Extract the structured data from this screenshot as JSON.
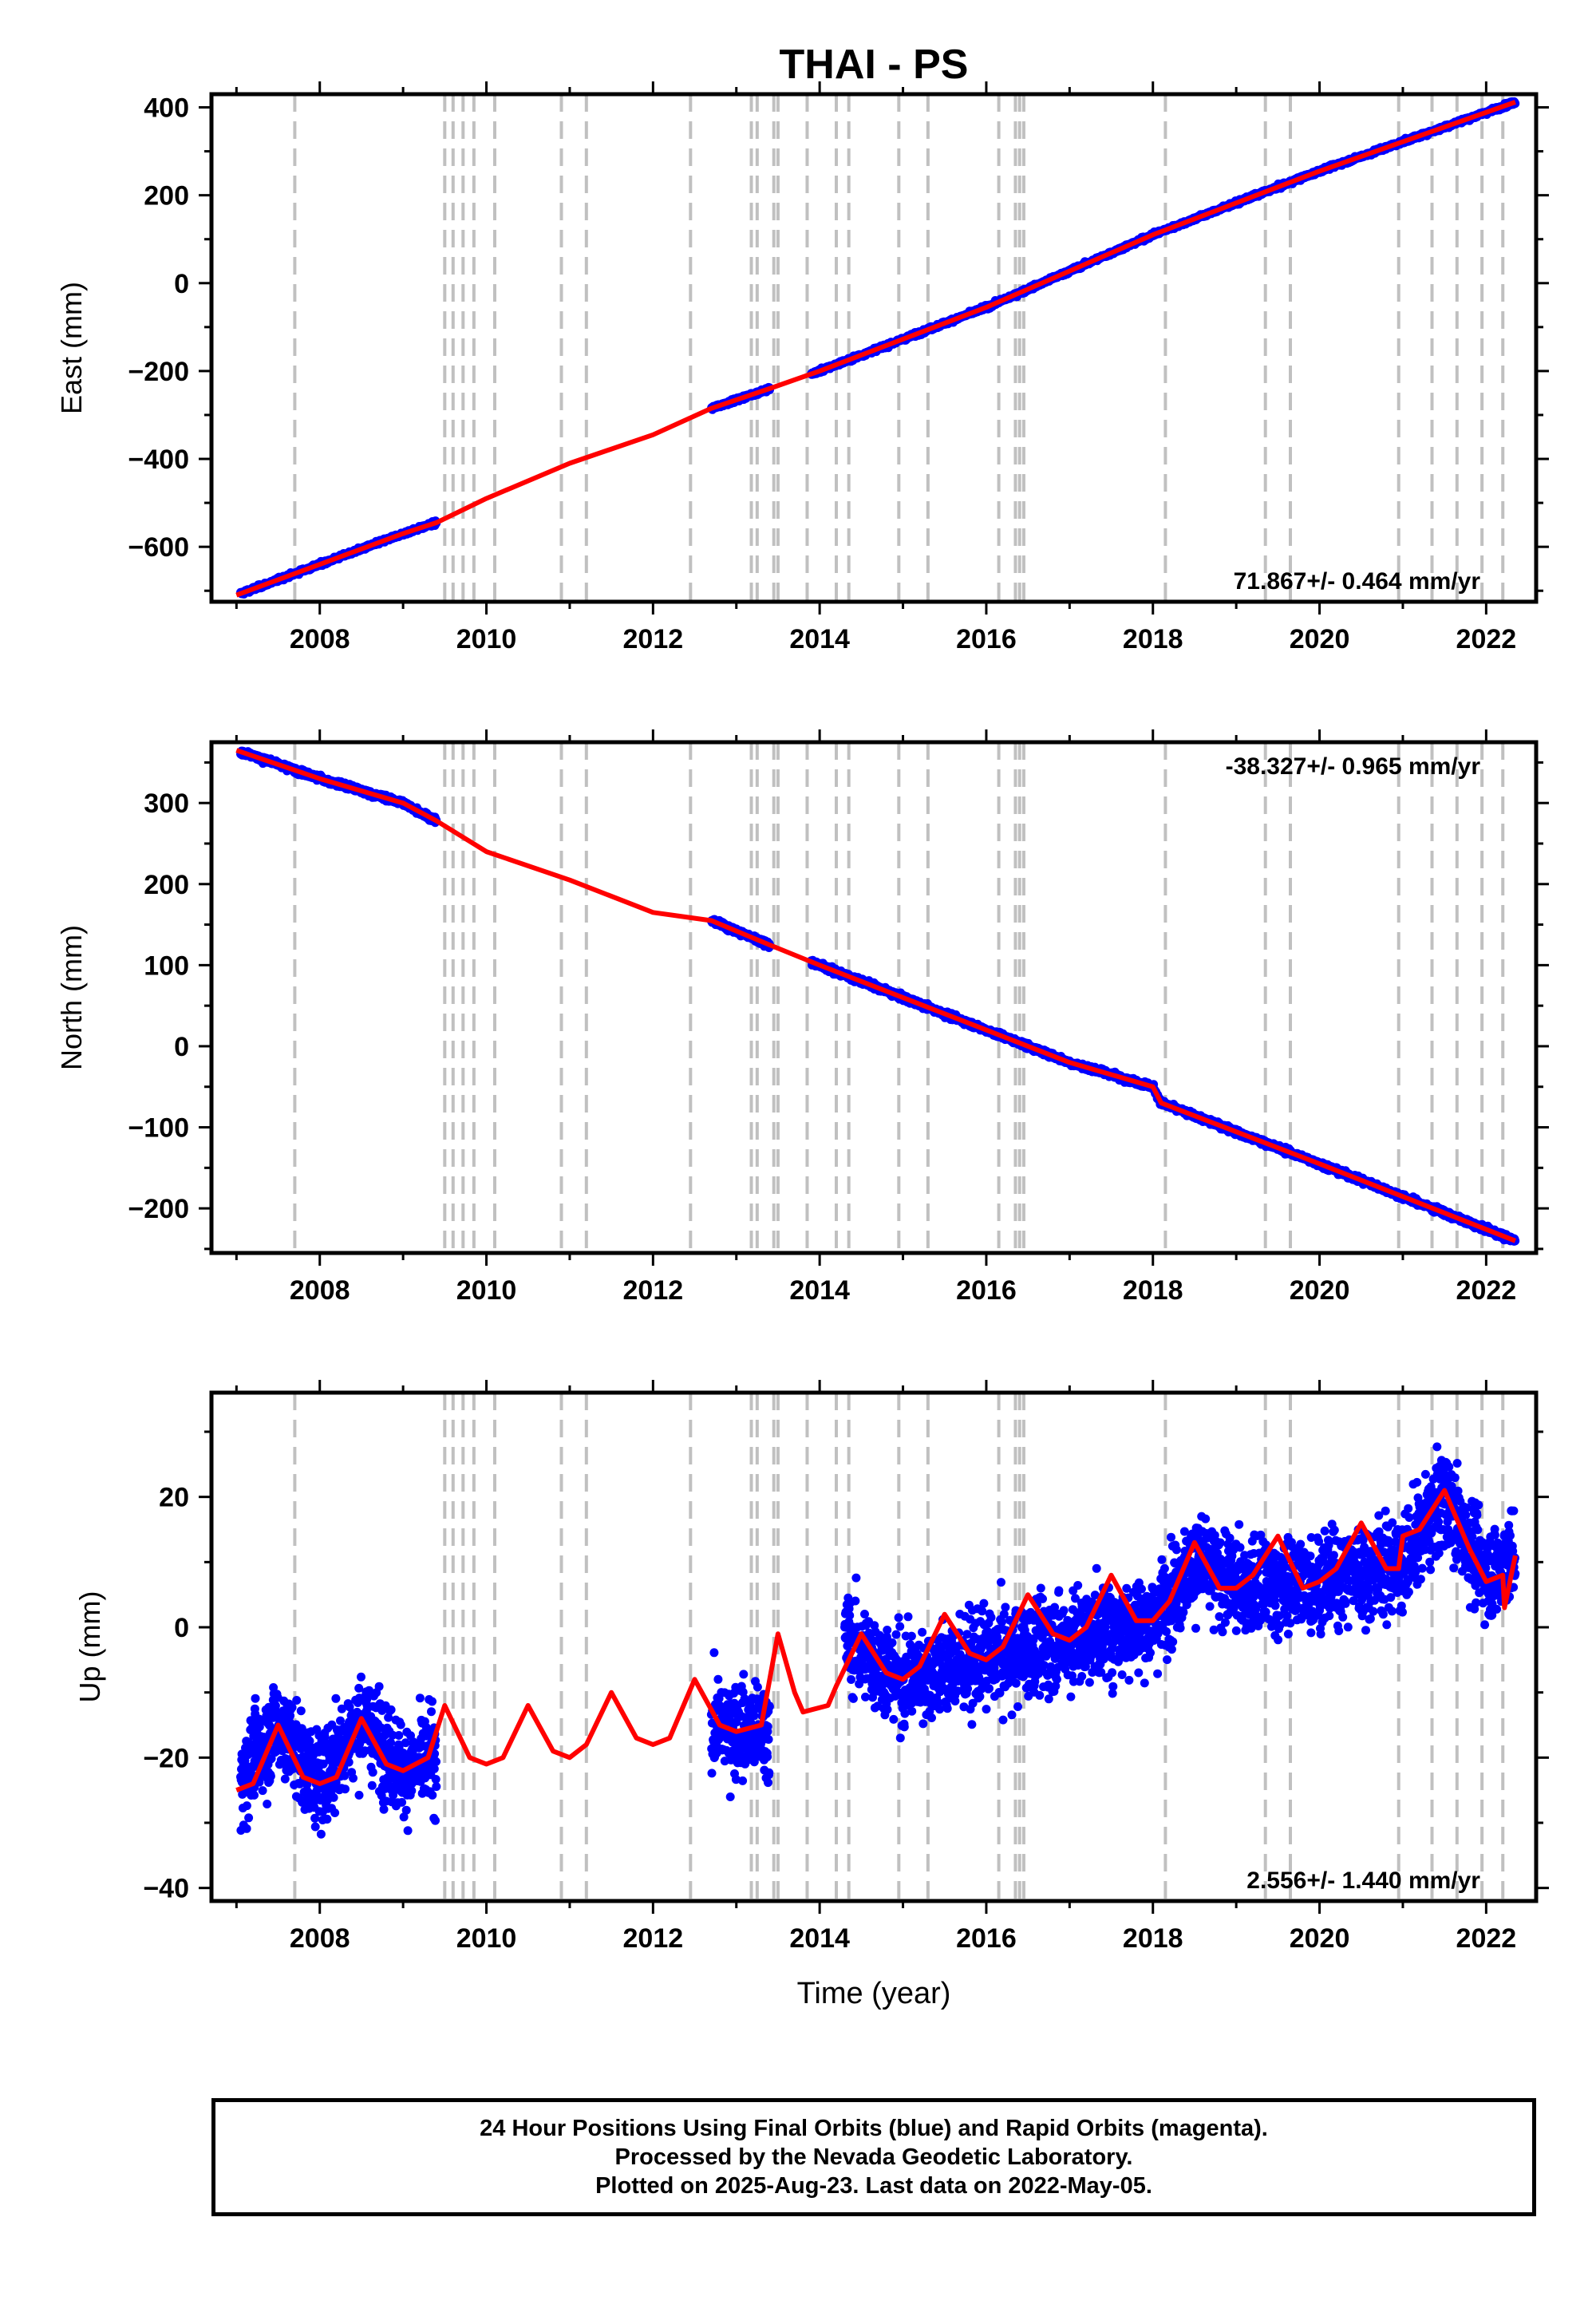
{
  "title": "THAI - PS",
  "xlabel": "Time (year)",
  "colors": {
    "data": "#0000ff",
    "model": "#ff0000",
    "steps": "#c0c0c0",
    "axis": "#000000"
  },
  "footer": {
    "line1": "24 Hour Positions Using Final Orbits (blue) and Rapid Orbits (magenta).",
    "line2": "Processed by the Nevada Geodetic Laboratory.",
    "line3": "Plotted on 2025-Aug-23. Last data on 2022-May-05."
  },
  "chart_data": [
    {
      "type": "scatter",
      "panel": "east",
      "title": "THAI - PS",
      "xlabel": "",
      "ylabel": "East (mm)",
      "xlim": [
        2006.7,
        2022.6
      ],
      "ylim": [
        -725,
        430
      ],
      "xticks": [
        2008,
        2010,
        2012,
        2014,
        2016,
        2018,
        2020,
        2022
      ],
      "yticks": [
        -600,
        -400,
        -200,
        0,
        200,
        400
      ],
      "rate_label": "71.867+/- 0.464 mm/yr",
      "rate_position": "bottom-right",
      "series": [
        {
          "name": "Final Orbits",
          "color": "#0000ff",
          "segments": [
            [
              2007.05,
              2009.4
            ],
            [
              2012.7,
              2013.4
            ],
            [
              2013.9,
              2022.35
            ]
          ],
          "x": [
            2007.0,
            2008.0,
            2009.0,
            2009.4,
            2012.7,
            2013.4,
            2014.0,
            2016.0,
            2018.0,
            2020.0,
            2022.35
          ],
          "y": [
            -710,
            -640,
            -570,
            -545,
            -285,
            -240,
            -200,
            -55,
            110,
            255,
            412
          ]
        },
        {
          "name": "Model",
          "color": "#ff0000",
          "x": [
            2007.0,
            2008.0,
            2009.0,
            2009.4,
            2010.0,
            2011.0,
            2012.0,
            2012.7,
            2013.4,
            2014.0,
            2016.0,
            2018.0,
            2020.0,
            2022.35
          ],
          "y": [
            -710,
            -640,
            -570,
            -545,
            -490,
            -410,
            -345,
            -285,
            -240,
            -200,
            -55,
            110,
            255,
            412
          ]
        }
      ]
    },
    {
      "type": "scatter",
      "panel": "north",
      "xlabel": "",
      "ylabel": "North (mm)",
      "xlim": [
        2006.7,
        2022.6
      ],
      "ylim": [
        -255,
        375
      ],
      "xticks": [
        2008,
        2010,
        2012,
        2014,
        2016,
        2018,
        2020,
        2022
      ],
      "yticks": [
        -200,
        -100,
        0,
        100,
        200,
        300
      ],
      "rate_label": "-38.327+/- 0.965 mm/yr",
      "rate_position": "top-right",
      "series": [
        {
          "name": "Final Orbits",
          "color": "#0000ff",
          "segments": [
            [
              2007.05,
              2009.4
            ],
            [
              2012.7,
              2013.4
            ],
            [
              2013.9,
              2022.35
            ]
          ],
          "x": [
            2007.0,
            2008.0,
            2009.0,
            2009.4,
            2012.7,
            2013.4,
            2014.0,
            2016.0,
            2017.0,
            2018.0,
            2018.1,
            2020.0,
            2022.35
          ],
          "y": [
            365,
            330,
            300,
            278,
            155,
            125,
            100,
            20,
            -20,
            -50,
            -70,
            -145,
            -240
          ]
        },
        {
          "name": "Model",
          "color": "#ff0000",
          "x": [
            2007.0,
            2008.0,
            2009.0,
            2009.4,
            2010.0,
            2011.0,
            2012.0,
            2012.7,
            2013.4,
            2014.0,
            2016.0,
            2017.0,
            2018.0,
            2018.1,
            2020.0,
            2022.35
          ],
          "y": [
            365,
            330,
            300,
            278,
            240,
            205,
            165,
            155,
            125,
            100,
            20,
            -20,
            -50,
            -70,
            -145,
            -240
          ]
        }
      ]
    },
    {
      "type": "scatter",
      "panel": "up",
      "xlabel": "Time (year)",
      "ylabel": "Up (mm)",
      "xlim": [
        2006.7,
        2022.6
      ],
      "ylim": [
        -42,
        36
      ],
      "xticks": [
        2008,
        2010,
        2012,
        2014,
        2016,
        2018,
        2020,
        2022
      ],
      "yticks": [
        -40,
        -20,
        0,
        20
      ],
      "rate_label": "2.556+/- 1.440 mm/yr",
      "rate_position": "bottom-right",
      "series": [
        {
          "name": "Final Orbits",
          "color": "#0000ff",
          "segments": [
            [
              2007.05,
              2009.4
            ],
            [
              2012.7,
              2013.4
            ],
            [
              2014.3,
              2022.35
            ]
          ],
          "scatter_sd": 5,
          "x": [
            2007.0,
            2007.5,
            2008.0,
            2008.5,
            2009.0,
            2009.4,
            2012.7,
            2013.4,
            2014.3,
            2015.0,
            2016.0,
            2017.0,
            2018.0,
            2018.5,
            2019.0,
            2020.0,
            2021.0,
            2021.5,
            2022.0,
            2022.35
          ],
          "y": [
            -24,
            -15,
            -24,
            -14,
            -22,
            -20,
            -15,
            -16,
            -2,
            -8,
            -5,
            -2,
            1,
            10,
            6,
            7,
            10,
            20,
            8,
            11
          ]
        },
        {
          "name": "Model",
          "color": "#ff0000",
          "x": [
            2007.0,
            2007.2,
            2007.5,
            2007.8,
            2008.0,
            2008.2,
            2008.5,
            2008.8,
            2009.0,
            2009.3,
            2009.5,
            2009.8,
            2010.0,
            2010.2,
            2010.5,
            2010.8,
            2011.0,
            2011.2,
            2011.5,
            2011.8,
            2012.0,
            2012.2,
            2012.5,
            2012.8,
            2013.0,
            2013.3,
            2013.5,
            2013.7,
            2013.8,
            2014.1,
            2014.2,
            2014.5,
            2014.8,
            2015.0,
            2015.2,
            2015.5,
            2015.8,
            2016.0,
            2016.2,
            2016.5,
            2016.8,
            2017.0,
            2017.2,
            2017.5,
            2017.8,
            2018.0,
            2018.2,
            2018.5,
            2018.8,
            2019.0,
            2019.2,
            2019.5,
            2019.8,
            2020.0,
            2020.2,
            2020.5,
            2020.8,
            2020.95,
            2021.0,
            2021.2,
            2021.5,
            2021.8,
            2022.0,
            2022.2,
            2022.22,
            2022.35
          ],
          "y": [
            -25,
            -24,
            -15,
            -23,
            -24,
            -23,
            -14,
            -21,
            -22,
            -20,
            -12,
            -20,
            -21,
            -20,
            -12,
            -19,
            -20,
            -18,
            -10,
            -17,
            -18,
            -17,
            -8,
            -15,
            -16,
            -15,
            -1,
            -10,
            -13,
            -12,
            -9,
            -1,
            -7,
            -8,
            -6,
            2,
            -4,
            -5,
            -3,
            5,
            -1,
            -2,
            0,
            8,
            1,
            1,
            4,
            13,
            6,
            6,
            8,
            14,
            6,
            7,
            9,
            16,
            9,
            9,
            14,
            15,
            21,
            12,
            7,
            8,
            3,
            11
          ]
        }
      ]
    }
  ],
  "step_years": [
    2007.7,
    2009.5,
    2009.6,
    2009.72,
    2009.85,
    2010.1,
    2010.9,
    2011.2,
    2012.45,
    2013.18,
    2013.25,
    2013.45,
    2013.5,
    2013.85,
    2014.2,
    2014.35,
    2014.95,
    2015.3,
    2016.15,
    2016.35,
    2016.4,
    2016.45,
    2018.15,
    2019.35,
    2019.65,
    2020.95,
    2021.35,
    2021.65,
    2021.95,
    2022.2
  ]
}
